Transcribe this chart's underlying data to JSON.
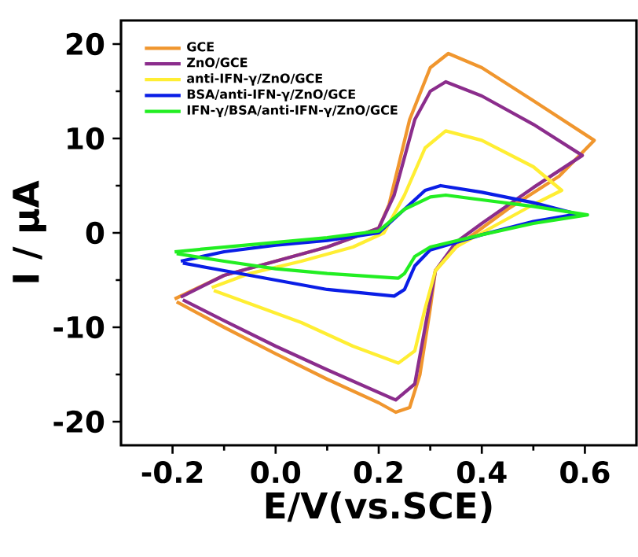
{
  "chart_data": {
    "type": "line",
    "xlabel": "E/V(vs.SCE)",
    "ylabel": "I / μA",
    "xlim": [
      -0.3,
      0.7
    ],
    "ylim": [
      -22.5,
      22.5
    ],
    "xticks": [
      {
        "value": -0.2,
        "label": "-0.2"
      },
      {
        "value": 0.0,
        "label": "0.0"
      },
      {
        "value": 0.2,
        "label": "0.2"
      },
      {
        "value": 0.4,
        "label": "0.4"
      },
      {
        "value": 0.6,
        "label": "0.6"
      }
    ],
    "yticks": [
      -20,
      -10,
      0,
      10,
      20
    ],
    "legend": "top left",
    "series": [
      {
        "name": "GCE",
        "color": "#f0962e",
        "x": [
          -0.196,
          -0.1,
          0.0,
          0.1,
          0.2,
          0.22,
          0.26,
          0.3,
          0.335,
          0.4,
          0.5,
          0.618,
          0.55,
          0.45,
          0.4,
          0.35,
          0.31,
          0.3,
          0.28,
          0.26,
          0.233,
          0.2,
          0.1,
          0.0,
          -0.1,
          -0.192
        ],
        "values": [
          -7,
          -4.5,
          -3,
          -1.5,
          0.5,
          3,
          12,
          17.5,
          19,
          17.5,
          14,
          9.8,
          6,
          2.5,
          0.5,
          -1.5,
          -4,
          -8,
          -15,
          -18.5,
          -19,
          -18,
          -15.5,
          -12.8,
          -10,
          -7.3
        ]
      },
      {
        "name": "ZnO/GCE",
        "color": "#8b2d8c",
        "x": [
          -0.184,
          -0.1,
          0.0,
          0.1,
          0.2,
          0.23,
          0.27,
          0.3,
          0.33,
          0.4,
          0.5,
          0.595,
          0.5,
          0.4,
          0.35,
          0.31,
          0.29,
          0.27,
          0.233,
          0.1,
          0.0,
          -0.1,
          -0.18
        ],
        "values": [
          -6.8,
          -4.5,
          -3,
          -1.5,
          0.5,
          4,
          12,
          15,
          16,
          14.5,
          11.5,
          8.2,
          4.8,
          1,
          -1,
          -4,
          -10,
          -16,
          -17.7,
          -14.5,
          -12,
          -9.3,
          -7.1
        ]
      },
      {
        "name": "anti-IFN-γ/ZnO/GCE",
        "color": "#ffee33",
        "x": [
          -0.124,
          -0.05,
          0.05,
          0.15,
          0.21,
          0.25,
          0.29,
          0.33,
          0.4,
          0.5,
          0.555,
          0.5,
          0.4,
          0.35,
          0.31,
          0.29,
          0.27,
          0.238,
          0.15,
          0.05,
          -0.05,
          -0.12
        ],
        "values": [
          -5.8,
          -4.3,
          -3,
          -1.5,
          0,
          4,
          9,
          10.8,
          9.8,
          7,
          4.5,
          3,
          0,
          -1.5,
          -4,
          -8,
          -12.5,
          -13.8,
          -12,
          -9.5,
          -7.5,
          -6.1
        ]
      },
      {
        "name": "BSA/anti-IFN-γ/ZnO/GCE",
        "color": "#0a1ee6",
        "x": [
          -0.184,
          -0.1,
          0.0,
          0.1,
          0.2,
          0.25,
          0.29,
          0.32,
          0.4,
          0.5,
          0.585,
          0.5,
          0.4,
          0.3,
          0.27,
          0.25,
          0.23,
          0.1,
          0.0,
          -0.1,
          -0.18
        ],
        "values": [
          -3,
          -2,
          -1.3,
          -0.8,
          0,
          2.5,
          4.5,
          5,
          4.3,
          3.2,
          2,
          1.2,
          -0.2,
          -1.8,
          -3.5,
          -6,
          -6.7,
          -6,
          -5,
          -4,
          -3.2
        ]
      },
      {
        "name": "IFN-γ/BSA/anti-IFN-γ/ZnO/GCE",
        "color": "#22ee22",
        "x": [
          -0.196,
          -0.1,
          0.0,
          0.1,
          0.2,
          0.25,
          0.3,
          0.33,
          0.4,
          0.5,
          0.605,
          0.5,
          0.4,
          0.3,
          0.27,
          0.25,
          0.238,
          0.1,
          0.0,
          -0.1,
          -0.192
        ],
        "values": [
          -2,
          -1.5,
          -1,
          -0.5,
          0.2,
          2.5,
          3.8,
          4,
          3.5,
          2.8,
          1.9,
          1,
          -0.2,
          -1.5,
          -2.5,
          -4.3,
          -4.8,
          -4.3,
          -3.8,
          -3,
          -2.2
        ]
      }
    ]
  }
}
